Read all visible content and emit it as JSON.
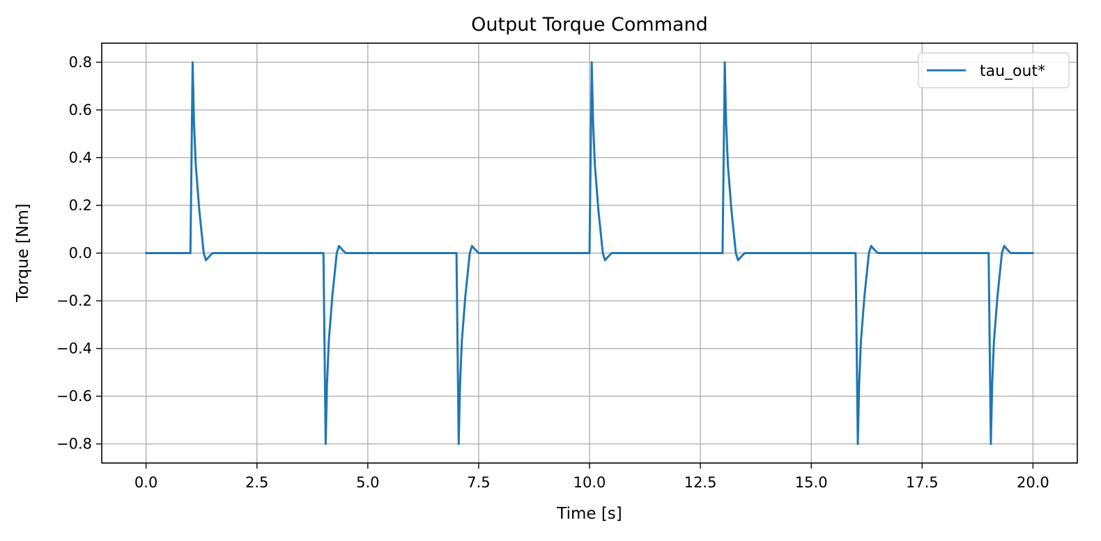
{
  "chart_data": {
    "type": "line",
    "title": "Output Torque Command",
    "xlabel": "Time [s]",
    "ylabel": "Torque [Nm]",
    "xlim": [
      -1.0,
      21.0
    ],
    "ylim": [
      -0.88,
      0.88
    ],
    "xticks": [
      0.0,
      2.5,
      5.0,
      7.5,
      10.0,
      12.5,
      15.0,
      17.5,
      20.0
    ],
    "xtick_labels": [
      "0.0",
      "2.5",
      "5.0",
      "7.5",
      "10.0",
      "12.5",
      "15.0",
      "17.5",
      "20.0"
    ],
    "yticks": [
      0.8,
      0.6,
      0.4,
      0.2,
      0.0,
      -0.2,
      -0.4,
      -0.6,
      -0.8
    ],
    "ytick_labels": [
      "0.8",
      "0.6",
      "0.4",
      "0.2",
      "0.0",
      "−0.2",
      "−0.4",
      "−0.6",
      "−0.8"
    ],
    "grid": true,
    "legend_position": "top-right",
    "colors": {
      "series": "#1f77b4",
      "grid": "#b0b0b0",
      "axes": "#000000"
    },
    "series": [
      {
        "name": "tau_out*",
        "x": [
          0.0,
          1.0,
          1.05,
          1.08,
          1.12,
          1.2,
          1.3,
          1.35,
          1.42,
          1.5,
          1.6,
          1.8,
          4.0,
          4.05,
          4.08,
          4.12,
          4.2,
          4.3,
          4.35,
          4.42,
          4.5,
          4.6,
          4.8,
          7.0,
          7.05,
          7.08,
          7.12,
          7.2,
          7.3,
          7.35,
          7.42,
          7.5,
          7.6,
          7.8,
          10.0,
          10.05,
          10.08,
          10.12,
          10.2,
          10.3,
          10.35,
          10.42,
          10.5,
          10.6,
          10.8,
          13.0,
          13.05,
          13.08,
          13.12,
          13.2,
          13.3,
          13.35,
          13.42,
          13.5,
          13.6,
          13.8,
          16.0,
          16.05,
          16.08,
          16.12,
          16.2,
          16.3,
          16.35,
          16.42,
          16.5,
          16.6,
          16.8,
          19.0,
          19.05,
          19.08,
          19.12,
          19.2,
          19.3,
          19.35,
          19.42,
          19.5,
          19.6,
          19.8,
          20.0
        ],
        "y": [
          0.0,
          0.0,
          0.8,
          0.55,
          0.37,
          0.18,
          0.0,
          -0.03,
          -0.015,
          0.0,
          0.0,
          0.0,
          0.0,
          -0.8,
          -0.55,
          -0.37,
          -0.18,
          0.0,
          0.03,
          0.015,
          0.0,
          0.0,
          0.0,
          0.0,
          -0.8,
          -0.55,
          -0.37,
          -0.18,
          0.0,
          0.03,
          0.015,
          0.0,
          0.0,
          0.0,
          0.0,
          0.8,
          0.55,
          0.37,
          0.18,
          0.0,
          -0.03,
          -0.015,
          0.0,
          0.0,
          0.0,
          0.0,
          0.8,
          0.55,
          0.37,
          0.18,
          0.0,
          -0.03,
          -0.015,
          0.0,
          0.0,
          0.0,
          0.0,
          -0.8,
          -0.55,
          -0.37,
          -0.18,
          0.0,
          0.03,
          0.015,
          0.0,
          0.0,
          0.0,
          0.0,
          -0.8,
          -0.55,
          -0.37,
          -0.18,
          0.0,
          0.03,
          0.015,
          0.0,
          0.0,
          0.0,
          0.0
        ]
      }
    ]
  }
}
